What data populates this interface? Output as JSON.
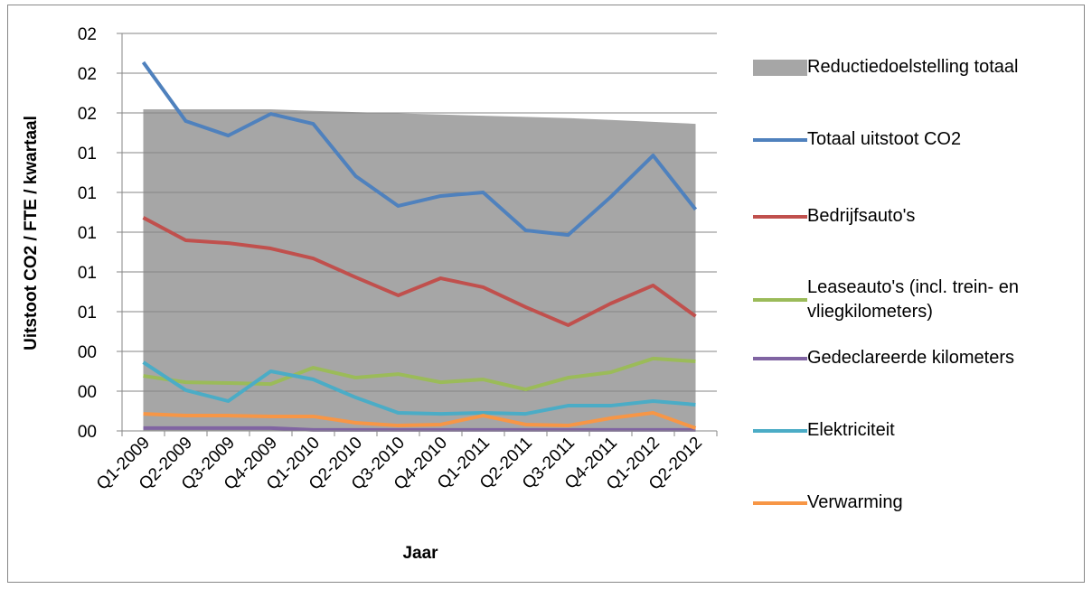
{
  "chart_data": {
    "type": "line",
    "y_label": "Uitstoot CO2 / FTE / kwartaal",
    "x_label": "Jaar",
    "categories": [
      "Q1-2009",
      "Q2-2009",
      "Q3-2009",
      "Q4-2009",
      "Q1-2010",
      "Q2-2010",
      "Q3-2010",
      "Q4-2010",
      "Q1-2011",
      "Q2-2011",
      "Q3-2011",
      "Q4-2011",
      "Q1-2012",
      "Q2-2012"
    ],
    "ylim": [
      0,
      2
    ],
    "yticks": [
      {
        "value": 0,
        "label": "00"
      },
      {
        "value": 0.2,
        "label": "00"
      },
      {
        "value": 0.4,
        "label": "00"
      },
      {
        "value": 0.6,
        "label": "01"
      },
      {
        "value": 0.8,
        "label": "01"
      },
      {
        "value": 1,
        "label": "01"
      },
      {
        "value": 1.2,
        "label": "01"
      },
      {
        "value": 1.4,
        "label": "01"
      },
      {
        "value": 1.6,
        "label": "02"
      },
      {
        "value": 1.8,
        "label": "02"
      },
      {
        "value": 2,
        "label": "02"
      }
    ],
    "grid": true,
    "legend": "right",
    "series": [
      {
        "name": "Reductiedoelstelling totaal",
        "kind": "area",
        "color": "#a6a6a6",
        "values": [
          1.618,
          1.618,
          1.618,
          1.618,
          1.61,
          1.604,
          1.598,
          1.592,
          1.586,
          1.58,
          1.574,
          1.565,
          1.555,
          1.545
        ]
      },
      {
        "name": "Totaal uitstoot CO2",
        "color": "#4f81bd",
        "values": [
          1.855,
          1.559,
          1.486,
          1.595,
          1.545,
          1.282,
          1.132,
          1.182,
          1.2,
          1.009,
          0.986,
          1.177,
          1.386,
          1.114
        ]
      },
      {
        "name": "Bedrijfsauto's",
        "color": "#c0504d",
        "values": [
          1.073,
          0.959,
          0.945,
          0.918,
          0.868,
          0.773,
          0.682,
          0.768,
          0.723,
          0.623,
          0.532,
          0.641,
          0.732,
          0.577
        ]
      },
      {
        "name": "Leaseauto's (incl. trein- en vliegkilometers)",
        "color": "#9bbb59",
        "values": [
          0.277,
          0.245,
          0.241,
          0.236,
          0.318,
          0.268,
          0.286,
          0.245,
          0.259,
          0.209,
          0.268,
          0.295,
          0.364,
          0.35
        ]
      },
      {
        "name": "Gedeclareerde kilometers",
        "color": "#8064a2",
        "values": [
          0.014,
          0.014,
          0.014,
          0.014,
          0.005,
          0.005,
          0.005,
          0.005,
          0.005,
          0.005,
          0.005,
          0.005,
          0.005,
          0.005
        ]
      },
      {
        "name": "Elektriciteit",
        "color": "#4bacc6",
        "values": [
          0.345,
          0.205,
          0.15,
          0.3,
          0.259,
          0.168,
          0.091,
          0.086,
          0.091,
          0.086,
          0.127,
          0.127,
          0.15,
          0.132
        ]
      },
      {
        "name": "Verwarming",
        "color": "#f79646",
        "values": [
          0.086,
          0.077,
          0.077,
          0.073,
          0.073,
          0.041,
          0.027,
          0.032,
          0.077,
          0.032,
          0.027,
          0.064,
          0.091,
          0.014
        ]
      }
    ]
  }
}
